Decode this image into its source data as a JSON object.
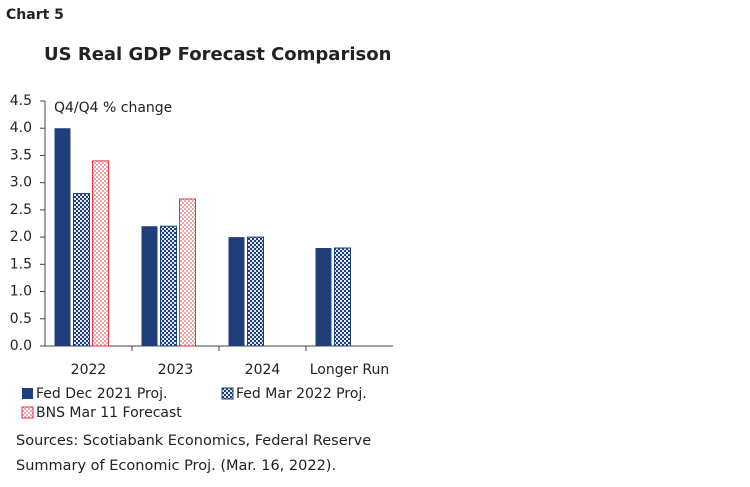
{
  "chart_label": "Chart 5",
  "chart_data": {
    "type": "bar",
    "title": "US Real GDP Forecast Comparison",
    "y_label": "Q4/Q4 % change",
    "categories": [
      "2022",
      "2023",
      "2024",
      "Longer Run"
    ],
    "series": [
      {
        "name": "Fed Dec 2021 Proj.",
        "color": "#1f3f7a",
        "values": [
          4.0,
          2.2,
          2.0,
          1.8
        ]
      },
      {
        "name": "Fed Mar 2022 Proj.",
        "color": "#1f3f7a",
        "values": [
          2.8,
          2.2,
          2.0,
          1.8
        ]
      },
      {
        "name": "BNS Mar 11 Forecast",
        "color": "#e8313b",
        "values": [
          3.4,
          2.7,
          null,
          null
        ]
      }
    ],
    "ylim": [
      0,
      4.5
    ],
    "yticks": [
      {
        "value": 0,
        "label": "0.0"
      },
      0.5,
      {
        "value": 1,
        "label": "1.0"
      },
      1.5,
      {
        "value": 2,
        "label": "2.0"
      },
      2.5,
      {
        "value": 3,
        "label": "3.0"
      },
      3.5,
      {
        "value": 4,
        "label": "4.0"
      },
      4.5
    ],
    "grid": false,
    "legend": "bottom"
  },
  "source": [
    "Sources: Scotiabank Economics, Federal Reserve",
    "Summary of Economic Proj. (Mar. 16, 2022)."
  ]
}
